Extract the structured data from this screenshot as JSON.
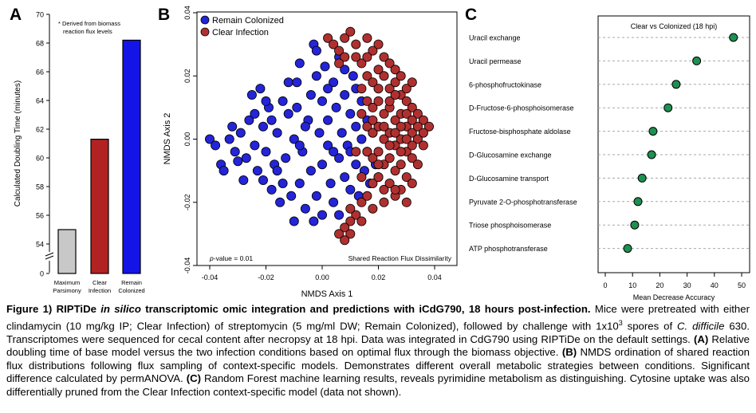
{
  "panels": {
    "a": {
      "letter": "A",
      "ylabel": "Calculated Doubling Time (minutes)",
      "yticks": [
        "70",
        "68",
        "66",
        "64",
        "62",
        "60",
        "58",
        "56",
        "54",
        "0"
      ],
      "note_line1": "* Derived from biomass",
      "note_line2": "reaction flux levels",
      "bar_labels": [
        [
          "Maximum",
          "Parsimony"
        ],
        [
          "Clear",
          "Infection"
        ],
        [
          "Remain",
          "Colonized"
        ]
      ],
      "colors": [
        "#c8c8c8",
        "#b22222",
        "#1414e6"
      ]
    },
    "b": {
      "letter": "B",
      "xlabel": "NMDS Axis 1",
      "ylabel": "NMDS Axis 2",
      "xticks": [
        "-0.04",
        "-0.02",
        "0.00",
        "0.02",
        "0.04"
      ],
      "yticks": [
        "0.04",
        "0.02",
        "0.00",
        "-0.02",
        "-0.04"
      ],
      "legend": [
        {
          "label": "Remain Colonized",
          "color": "#2424d8"
        },
        {
          "label": "Clear Infection",
          "color": "#b03030"
        }
      ],
      "pvalue_italic": "p",
      "pvalue_rest": "-value = 0.01",
      "annotation": "Shared Reaction Flux Dissimilarity"
    },
    "c": {
      "letter": "C",
      "title": "Clear vs Colonized (18 hpi)",
      "xlabel": "Mean Decrease Accuracy",
      "xticks": [
        "0",
        "10",
        "20",
        "30",
        "40",
        "50"
      ],
      "point_color": "#1e9050"
    }
  },
  "chart_data": [
    {
      "type": "bar",
      "panel": "A",
      "categories": [
        "Maximum Parsimony",
        "Clear Infection",
        "Remain Colonized"
      ],
      "values": [
        55.0,
        61.3,
        68.2
      ],
      "ylabel": "Calculated Doubling Time (minutes)",
      "ylim": [
        53.4,
        70
      ],
      "axis_break": true
    },
    {
      "type": "scatter",
      "panel": "B",
      "xlabel": "NMDS Axis 1",
      "ylabel": "NMDS Axis 2",
      "xlim": [
        -0.04,
        0.04
      ],
      "ylim": [
        -0.04,
        0.04
      ],
      "series": [
        {
          "name": "Remain Colonized",
          "points": [
            [
              -0.04,
              0.0
            ],
            [
              -0.038,
              -0.002
            ],
            [
              -0.036,
              -0.008
            ],
            [
              -0.035,
              -0.01
            ],
            [
              -0.033,
              0.0
            ],
            [
              -0.032,
              0.004
            ],
            [
              -0.031,
              -0.004
            ],
            [
              -0.03,
              -0.007
            ],
            [
              -0.029,
              0.002
            ],
            [
              -0.028,
              -0.013
            ],
            [
              -0.027,
              -0.006
            ],
            [
              -0.026,
              0.006
            ],
            [
              -0.025,
              0.014
            ],
            [
              -0.024,
              -0.002
            ],
            [
              -0.023,
              -0.01
            ],
            [
              -0.022,
              0.016
            ],
            [
              -0.021,
              0.004
            ],
            [
              -0.021,
              -0.013
            ],
            [
              -0.02,
              -0.004
            ],
            [
              -0.019,
              0.01
            ],
            [
              -0.018,
              -0.016
            ],
            [
              -0.018,
              0.006
            ],
            [
              -0.017,
              -0.008
            ],
            [
              -0.016,
              0.002
            ],
            [
              -0.015,
              -0.02
            ],
            [
              -0.014,
              0.012
            ],
            [
              -0.013,
              -0.006
            ],
            [
              -0.012,
              0.018
            ],
            [
              -0.011,
              -0.018
            ],
            [
              -0.01,
              0.0
            ],
            [
              -0.01,
              -0.026
            ],
            [
              -0.009,
              0.01
            ],
            [
              -0.008,
              -0.014
            ],
            [
              -0.008,
              0.024
            ],
            [
              -0.007,
              -0.004
            ],
            [
              -0.006,
              -0.022
            ],
            [
              -0.005,
              0.006
            ],
            [
              -0.004,
              0.014
            ],
            [
              -0.004,
              -0.01
            ],
            [
              -0.003,
              0.03
            ],
            [
              -0.002,
              -0.018
            ],
            [
              -0.002,
              0.02
            ],
            [
              -0.001,
              0.002
            ],
            [
              0.0,
              -0.008
            ],
            [
              0.0,
              0.012
            ],
            [
              0.001,
              0.023
            ],
            [
              0.002,
              -0.002
            ],
            [
              0.002,
              0.006
            ],
            [
              0.003,
              -0.014
            ],
            [
              0.004,
              0.018
            ],
            [
              0.004,
              -0.02
            ],
            [
              0.005,
              0.01
            ],
            [
              0.006,
              -0.006
            ],
            [
              0.006,
              0.026
            ],
            [
              0.007,
              0.002
            ],
            [
              0.008,
              -0.012
            ],
            [
              0.008,
              0.014
            ],
            [
              0.009,
              -0.002
            ],
            [
              0.01,
              0.008
            ],
            [
              0.01,
              -0.016
            ],
            [
              0.011,
              0.02
            ],
            [
              0.012,
              -0.008
            ],
            [
              0.012,
              0.004
            ],
            [
              0.013,
              -0.018
            ],
            [
              0.014,
              0.0
            ],
            [
              0.014,
              0.012
            ],
            [
              0.015,
              -0.01
            ],
            [
              0.016,
              0.006
            ],
            [
              0.016,
              -0.004
            ],
            [
              0.017,
              -0.014
            ],
            [
              0.018,
              0.002
            ],
            [
              0.019,
              -0.008
            ],
            [
              0.02,
              -0.012
            ],
            [
              -0.014,
              -0.014
            ],
            [
              -0.006,
              0.004
            ],
            [
              0.0,
              -0.024
            ],
            [
              0.006,
              -0.024
            ],
            [
              -0.024,
              0.008
            ],
            [
              -0.02,
              0.012
            ],
            [
              -0.008,
              -0.002
            ],
            [
              0.002,
              0.016
            ],
            [
              -0.012,
              0.008
            ],
            [
              0.004,
              -0.004
            ],
            [
              -0.016,
              -0.01
            ],
            [
              0.01,
              -0.004
            ],
            [
              -0.003,
              -0.026
            ],
            [
              -0.009,
              0.018
            ],
            [
              0.012,
              0.016
            ],
            [
              0.008,
              0.022
            ],
            [
              -0.002,
              0.028
            ]
          ]
        },
        {
          "name": "Clear Infection",
          "points": [
            [
              0.002,
              0.032
            ],
            [
              0.004,
              0.03
            ],
            [
              0.006,
              0.028
            ],
            [
              0.008,
              0.032
            ],
            [
              0.01,
              0.034
            ],
            [
              0.012,
              0.03
            ],
            [
              0.014,
              0.024
            ],
            [
              0.016,
              0.032
            ],
            [
              0.018,
              0.028
            ],
            [
              0.02,
              0.03
            ],
            [
              0.016,
              0.02
            ],
            [
              0.018,
              0.018
            ],
            [
              0.02,
              0.022
            ],
            [
              0.022,
              0.02
            ],
            [
              0.024,
              0.016
            ],
            [
              0.026,
              0.018
            ],
            [
              0.028,
              0.014
            ],
            [
              0.03,
              0.012
            ],
            [
              0.032,
              0.01
            ],
            [
              0.034,
              0.008
            ],
            [
              0.036,
              0.006
            ],
            [
              0.038,
              0.004
            ],
            [
              0.016,
              0.012
            ],
            [
              0.018,
              0.01
            ],
            [
              0.02,
              0.012
            ],
            [
              0.022,
              0.008
            ],
            [
              0.024,
              0.01
            ],
            [
              0.026,
              0.006
            ],
            [
              0.028,
              0.008
            ],
            [
              0.03,
              0.004
            ],
            [
              0.032,
              0.002
            ],
            [
              0.034,
              0.0
            ],
            [
              0.036,
              -0.002
            ],
            [
              0.016,
              0.004
            ],
            [
              0.018,
              0.002
            ],
            [
              0.02,
              0.004
            ],
            [
              0.022,
              0.0
            ],
            [
              0.024,
              0.002
            ],
            [
              0.026,
              -0.002
            ],
            [
              0.028,
              0.0
            ],
            [
              0.03,
              -0.004
            ],
            [
              0.032,
              -0.006
            ],
            [
              0.034,
              -0.008
            ],
            [
              0.016,
              -0.004
            ],
            [
              0.018,
              -0.006
            ],
            [
              0.02,
              -0.004
            ],
            [
              0.022,
              -0.008
            ],
            [
              0.024,
              -0.006
            ],
            [
              0.026,
              -0.01
            ],
            [
              0.028,
              -0.008
            ],
            [
              0.03,
              -0.012
            ],
            [
              0.032,
              -0.014
            ],
            [
              0.018,
              -0.014
            ],
            [
              0.02,
              -0.012
            ],
            [
              0.022,
              -0.016
            ],
            [
              0.024,
              -0.014
            ],
            [
              0.026,
              -0.018
            ],
            [
              0.028,
              -0.016
            ],
            [
              0.03,
              -0.02
            ],
            [
              0.014,
              -0.02
            ],
            [
              0.016,
              -0.018
            ],
            [
              0.012,
              -0.024
            ],
            [
              0.01,
              -0.026
            ],
            [
              0.008,
              -0.028
            ],
            [
              0.006,
              -0.03
            ],
            [
              0.01,
              -0.022
            ],
            [
              0.014,
              -0.012
            ],
            [
              0.012,
              -0.004
            ],
            [
              0.014,
              0.008
            ],
            [
              0.014,
              0.016
            ],
            [
              0.022,
              0.026
            ],
            [
              0.024,
              0.024
            ],
            [
              0.026,
              0.022
            ],
            [
              0.028,
              0.02
            ],
            [
              0.03,
              0.016
            ],
            [
              0.032,
              0.018
            ],
            [
              0.02,
              0.016
            ],
            [
              0.024,
              0.012
            ],
            [
              0.028,
              0.004
            ],
            [
              0.032,
              -0.002
            ],
            [
              0.026,
              0.014
            ],
            [
              0.03,
              0.008
            ],
            [
              0.02,
              -0.008
            ],
            [
              0.024,
              -0.002
            ],
            [
              0.028,
              -0.004
            ],
            [
              0.018,
              0.006
            ],
            [
              0.022,
              0.004
            ],
            [
              0.026,
              0.002
            ],
            [
              0.034,
              0.004
            ],
            [
              0.036,
              0.002
            ],
            [
              0.008,
              0.026
            ],
            [
              0.012,
              0.026
            ],
            [
              0.016,
              0.026
            ],
            [
              0.006,
              0.024
            ],
            [
              0.018,
              -0.022
            ],
            [
              0.022,
              -0.02
            ],
            [
              0.026,
              -0.016
            ],
            [
              0.014,
              -0.026
            ],
            [
              0.01,
              -0.03
            ],
            [
              0.008,
              -0.032
            ],
            [
              0.032,
              0.006
            ],
            [
              0.03,
              0.0
            ]
          ]
        }
      ]
    },
    {
      "type": "scatter",
      "panel": "C",
      "title": "Clear vs Colonized (18 hpi)",
      "xlabel": "Mean Decrease Accuracy",
      "xlim": [
        -2,
        51
      ],
      "categories": [
        "Uracil exchange",
        "Uracil permease",
        "6-phosphofructokinase",
        "D-Fructose-6-phosphoisomerase",
        "Fructose-bisphosphate aldolase",
        "D-Glucosamine exchange",
        "D-Glucosamine transport",
        "Pyruvate 2-O-phosphotransferase",
        "Triose phosphoisomerase",
        "ATP phosphotransferase"
      ],
      "values": [
        47.0,
        33.5,
        26.0,
        23.0,
        17.5,
        17.0,
        13.5,
        12.0,
        10.8,
        8.2
      ]
    }
  ],
  "caption": {
    "heading_pre": "Figure 1) RIPTiDe ",
    "heading_italic": "in silico",
    "heading_post": " transcriptomic omic integration and predictions with iCdG790, 18 hours post-infection.",
    "s1": " Mice were pretreated with either clindamycin (10 mg/kg IP; Clear Infection) of streptomycin (5 mg/ml DW; Remain Colonized), followed by challenge with 1x10",
    "s1_sup": "3",
    "s1b": " spores of ",
    "s1_italic": "C. difficile",
    "s1c": " 630. Transcriptomes were sequenced for cecal content after necropsy at 18 hpi. Data was integrated in CdG790 using RIPTiDe on the default settings. ",
    "a_label": "(A)",
    "a_text": " Relative doubling time of base model versus the two infection conditions based on optimal flux through the biomass objective. ",
    "b_label": "(B)",
    "b_text": " NMDS ordination of shared reaction flux distributions following flux sampling of context-specific models. Demonstrates different overall metabolic strategies between conditions. Significant difference calculated by permANOVA. ",
    "c_label": "(C)",
    "c_text": " Random Forest machine learning results, reveals pyrimidine metabolism as distinguishing. Cytosine uptake was also differentially pruned from the Clear Infection context-specific model (data not shown)."
  }
}
